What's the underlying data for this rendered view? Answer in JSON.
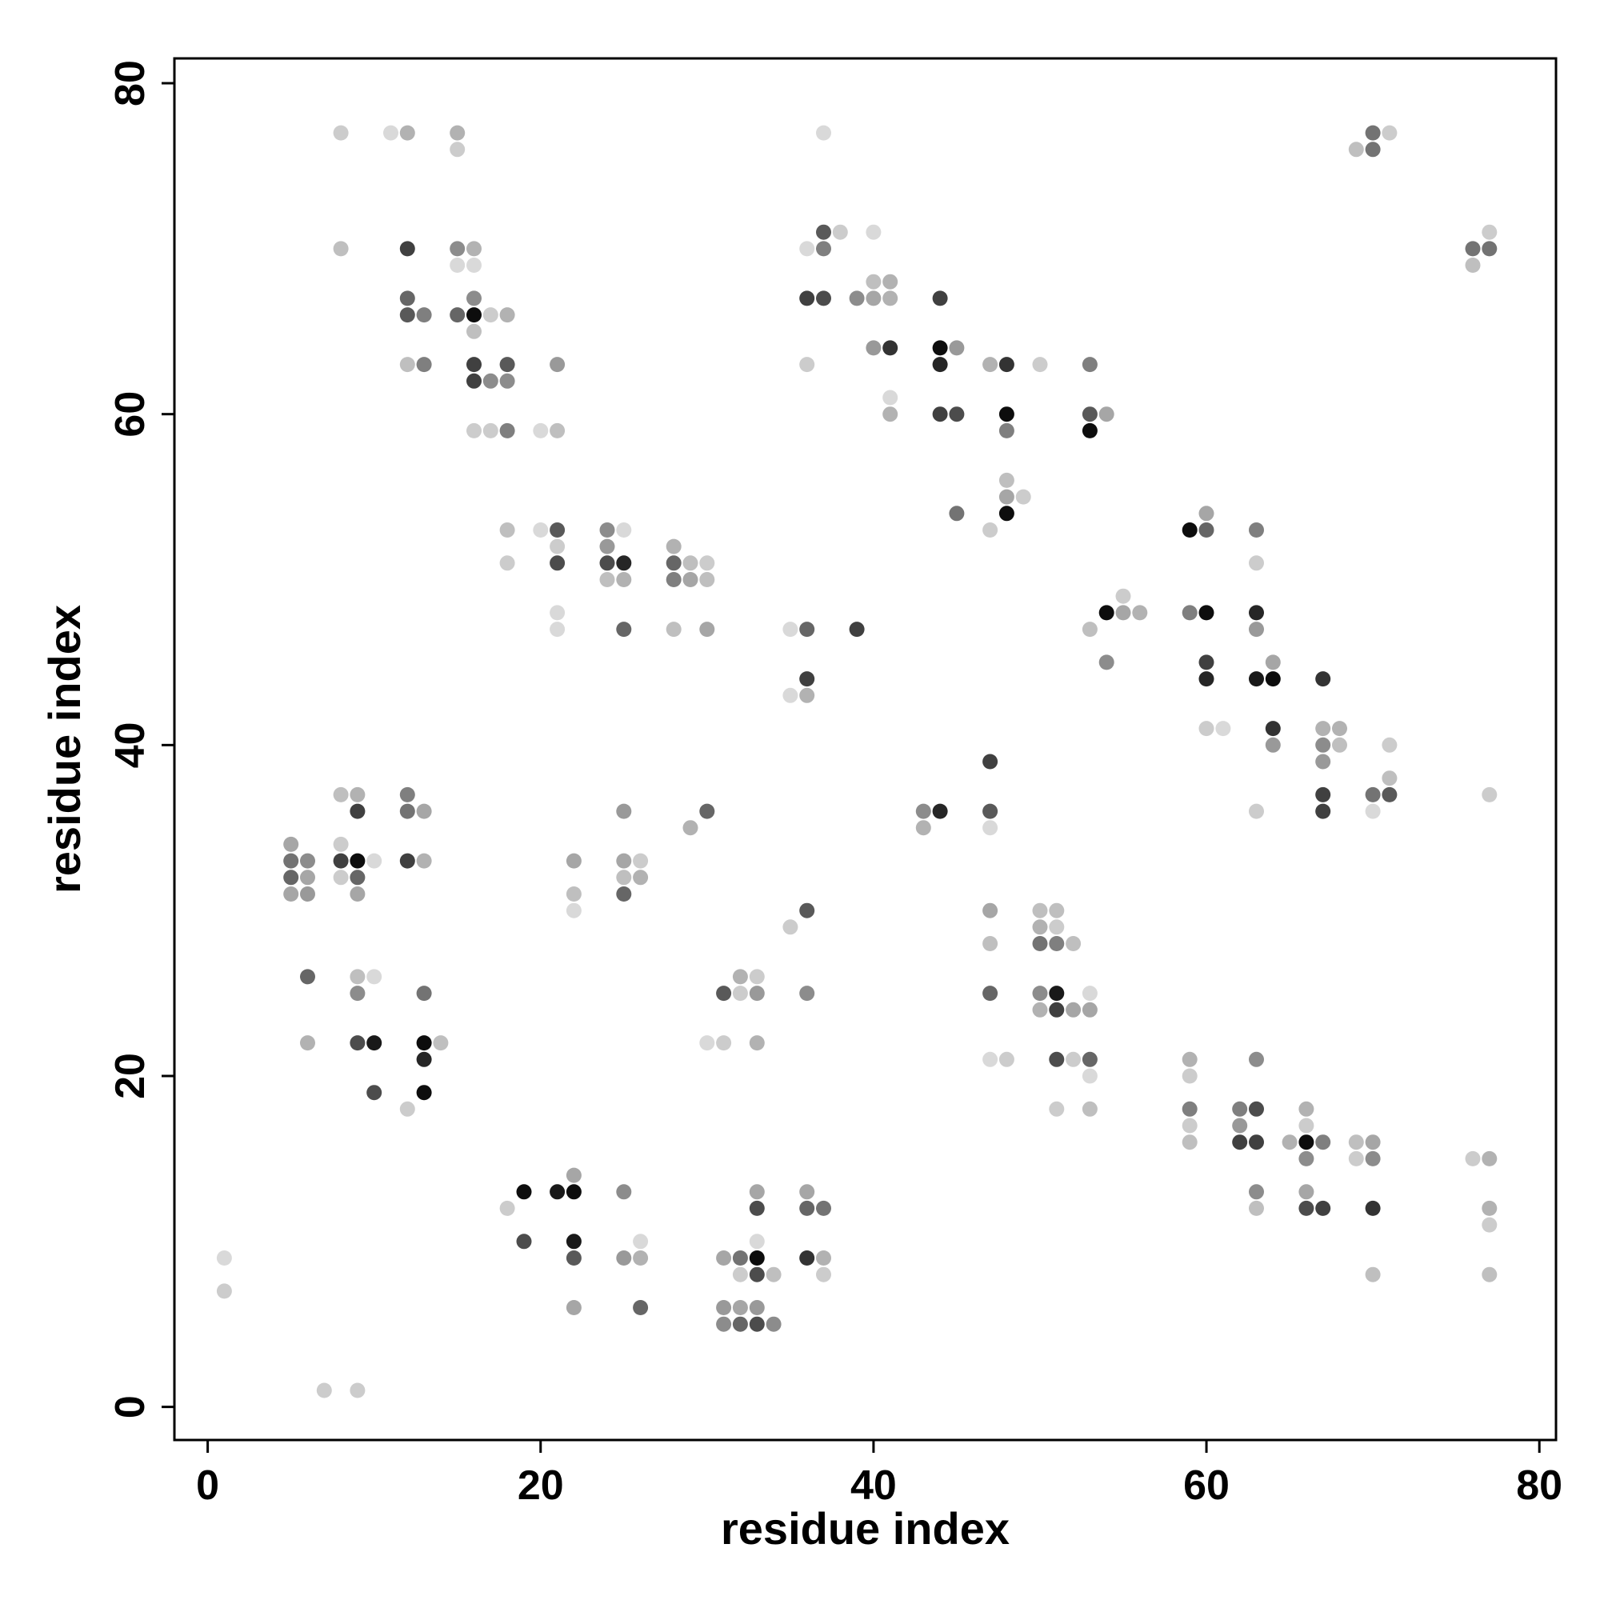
{
  "chart_data": {
    "type": "scatter",
    "title": "",
    "xlabel": "residue index",
    "ylabel": "residue index",
    "xlim": [
      -2,
      81
    ],
    "ylim": [
      -2,
      81.5
    ],
    "xticks": [
      0,
      20,
      40,
      60,
      80
    ],
    "yticks": [
      0,
      20,
      40,
      60,
      80
    ],
    "grid": false,
    "legend": "none",
    "marker_color": "#000000",
    "note_value": "grey level of each point: 0 = lightest, 1 = black",
    "points": [
      [
        1,
        9,
        0.15
      ],
      [
        1,
        7,
        0.2
      ],
      [
        7,
        1,
        0.2
      ],
      [
        9,
        1,
        0.2
      ],
      [
        8,
        77,
        0.2
      ],
      [
        11,
        77,
        0.15
      ],
      [
        12,
        77,
        0.3
      ],
      [
        15,
        77,
        0.3
      ],
      [
        15,
        76,
        0.2
      ],
      [
        8,
        70,
        0.25
      ],
      [
        12,
        70,
        0.75
      ],
      [
        15,
        70,
        0.45
      ],
      [
        16,
        70,
        0.3
      ],
      [
        15,
        69,
        0.15
      ],
      [
        16,
        69,
        0.15
      ],
      [
        12,
        67,
        0.6
      ],
      [
        16,
        67,
        0.45
      ],
      [
        12,
        66,
        0.65
      ],
      [
        13,
        66,
        0.5
      ],
      [
        15,
        66,
        0.6
      ],
      [
        16,
        66,
        0.95
      ],
      [
        17,
        66,
        0.2
      ],
      [
        18,
        66,
        0.3
      ],
      [
        16,
        65,
        0.25
      ],
      [
        12,
        63,
        0.25
      ],
      [
        13,
        63,
        0.5
      ],
      [
        16,
        63,
        0.75
      ],
      [
        18,
        63,
        0.65
      ],
      [
        16,
        62,
        0.75
      ],
      [
        17,
        62,
        0.45
      ],
      [
        18,
        62,
        0.45
      ],
      [
        16,
        59,
        0.2
      ],
      [
        17,
        59,
        0.2
      ],
      [
        18,
        59,
        0.5
      ],
      [
        20,
        59,
        0.15
      ],
      [
        21,
        59,
        0.25
      ],
      [
        21,
        63,
        0.4
      ],
      [
        18,
        53,
        0.25
      ],
      [
        20,
        53,
        0.15
      ],
      [
        21,
        53,
        0.65
      ],
      [
        21,
        52,
        0.2
      ],
      [
        18,
        51,
        0.2
      ],
      [
        21,
        51,
        0.7
      ],
      [
        21,
        48,
        0.15
      ],
      [
        21,
        47,
        0.15
      ],
      [
        24,
        53,
        0.45
      ],
      [
        25,
        53,
        0.15
      ],
      [
        24,
        52,
        0.4
      ],
      [
        24,
        51,
        0.7
      ],
      [
        25,
        51,
        0.85
      ],
      [
        24,
        50,
        0.25
      ],
      [
        25,
        50,
        0.3
      ],
      [
        25,
        47,
        0.6
      ],
      [
        28,
        52,
        0.3
      ],
      [
        28,
        51,
        0.6
      ],
      [
        29,
        51,
        0.25
      ],
      [
        30,
        51,
        0.2
      ],
      [
        28,
        50,
        0.5
      ],
      [
        29,
        50,
        0.35
      ],
      [
        30,
        50,
        0.25
      ],
      [
        28,
        47,
        0.25
      ],
      [
        30,
        47,
        0.35
      ],
      [
        5,
        34,
        0.35
      ],
      [
        5,
        33,
        0.55
      ],
      [
        6,
        33,
        0.45
      ],
      [
        5,
        32,
        0.6
      ],
      [
        6,
        32,
        0.35
      ],
      [
        5,
        31,
        0.35
      ],
      [
        6,
        31,
        0.4
      ],
      [
        8,
        37,
        0.25
      ],
      [
        9,
        37,
        0.3
      ],
      [
        9,
        36,
        0.75
      ],
      [
        8,
        34,
        0.2
      ],
      [
        8,
        33,
        0.75
      ],
      [
        9,
        33,
        0.95
      ],
      [
        10,
        33,
        0.15
      ],
      [
        8,
        32,
        0.2
      ],
      [
        9,
        32,
        0.6
      ],
      [
        9,
        31,
        0.35
      ],
      [
        12,
        37,
        0.5
      ],
      [
        12,
        36,
        0.55
      ],
      [
        13,
        36,
        0.35
      ],
      [
        12,
        33,
        0.75
      ],
      [
        13,
        33,
        0.3
      ],
      [
        6,
        26,
        0.6
      ],
      [
        6,
        22,
        0.3
      ],
      [
        9,
        26,
        0.25
      ],
      [
        10,
        26,
        0.15
      ],
      [
        9,
        25,
        0.45
      ],
      [
        9,
        22,
        0.7
      ],
      [
        10,
        22,
        0.9
      ],
      [
        10,
        19,
        0.7
      ],
      [
        13,
        25,
        0.55
      ],
      [
        13,
        22,
        0.95
      ],
      [
        14,
        22,
        0.25
      ],
      [
        13,
        21,
        0.85
      ],
      [
        13,
        19,
        0.95
      ],
      [
        12,
        18,
        0.2
      ],
      [
        22,
        33,
        0.35
      ],
      [
        22,
        31,
        0.25
      ],
      [
        22,
        30,
        0.15
      ],
      [
        25,
        36,
        0.4
      ],
      [
        25,
        33,
        0.35
      ],
      [
        26,
        33,
        0.2
      ],
      [
        25,
        32,
        0.25
      ],
      [
        26,
        32,
        0.3
      ],
      [
        25,
        31,
        0.6
      ],
      [
        29,
        35,
        0.3
      ],
      [
        30,
        36,
        0.6
      ],
      [
        18,
        12,
        0.2
      ],
      [
        19,
        13,
        0.95
      ],
      [
        21,
        13,
        0.9
      ],
      [
        22,
        13,
        0.95
      ],
      [
        22,
        14,
        0.35
      ],
      [
        19,
        10,
        0.7
      ],
      [
        22,
        10,
        0.9
      ],
      [
        22,
        9,
        0.65
      ],
      [
        22,
        6,
        0.35
      ],
      [
        25,
        13,
        0.45
      ],
      [
        25,
        9,
        0.4
      ],
      [
        26,
        9,
        0.3
      ],
      [
        26,
        10,
        0.15
      ],
      [
        26,
        6,
        0.6
      ],
      [
        31,
        9,
        0.35
      ],
      [
        32,
        9,
        0.55
      ],
      [
        33,
        9,
        0.95
      ],
      [
        32,
        8,
        0.2
      ],
      [
        33,
        8,
        0.7
      ],
      [
        34,
        8,
        0.25
      ],
      [
        33,
        10,
        0.15
      ],
      [
        33,
        13,
        0.35
      ],
      [
        33,
        12,
        0.7
      ],
      [
        31,
        6,
        0.4
      ],
      [
        32,
        6,
        0.35
      ],
      [
        33,
        6,
        0.4
      ],
      [
        31,
        5,
        0.45
      ],
      [
        32,
        5,
        0.6
      ],
      [
        33,
        5,
        0.7
      ],
      [
        34,
        5,
        0.45
      ],
      [
        36,
        13,
        0.35
      ],
      [
        36,
        12,
        0.6
      ],
      [
        37,
        12,
        0.55
      ],
      [
        36,
        9,
        0.8
      ],
      [
        37,
        9,
        0.3
      ],
      [
        37,
        8,
        0.2
      ],
      [
        31,
        25,
        0.65
      ],
      [
        32,
        26,
        0.3
      ],
      [
        33,
        26,
        0.2
      ],
      [
        32,
        25,
        0.2
      ],
      [
        33,
        25,
        0.4
      ],
      [
        33,
        22,
        0.3
      ],
      [
        30,
        22,
        0.15
      ],
      [
        31,
        22,
        0.2
      ],
      [
        35,
        29,
        0.2
      ],
      [
        36,
        30,
        0.65
      ],
      [
        36,
        25,
        0.45
      ],
      [
        37,
        77,
        0.15
      ],
      [
        37,
        71,
        0.65
      ],
      [
        38,
        71,
        0.2
      ],
      [
        40,
        71,
        0.15
      ],
      [
        36,
        70,
        0.15
      ],
      [
        37,
        70,
        0.5
      ],
      [
        36,
        67,
        0.75
      ],
      [
        37,
        67,
        0.7
      ],
      [
        39,
        67,
        0.45
      ],
      [
        40,
        67,
        0.35
      ],
      [
        41,
        67,
        0.3
      ],
      [
        40,
        68,
        0.25
      ],
      [
        41,
        68,
        0.3
      ],
      [
        36,
        63,
        0.2
      ],
      [
        40,
        64,
        0.4
      ],
      [
        41,
        64,
        0.8
      ],
      [
        41,
        61,
        0.15
      ],
      [
        41,
        60,
        0.3
      ],
      [
        44,
        67,
        0.75
      ],
      [
        44,
        64,
        0.95
      ],
      [
        45,
        64,
        0.4
      ],
      [
        44,
        63,
        0.85
      ],
      [
        44,
        60,
        0.75
      ],
      [
        45,
        60,
        0.7
      ],
      [
        47,
        63,
        0.3
      ],
      [
        48,
        63,
        0.8
      ],
      [
        48,
        60,
        0.95
      ],
      [
        48,
        59,
        0.5
      ],
      [
        50,
        63,
        0.2
      ],
      [
        53,
        63,
        0.5
      ],
      [
        53,
        60,
        0.65
      ],
      [
        54,
        60,
        0.35
      ],
      [
        53,
        59,
        0.95
      ],
      [
        45,
        54,
        0.55
      ],
      [
        47,
        53,
        0.2
      ],
      [
        48,
        56,
        0.25
      ],
      [
        48,
        55,
        0.35
      ],
      [
        49,
        55,
        0.2
      ],
      [
        48,
        54,
        0.95
      ],
      [
        35,
        47,
        0.15
      ],
      [
        36,
        47,
        0.6
      ],
      [
        39,
        47,
        0.75
      ],
      [
        36,
        44,
        0.75
      ],
      [
        35,
        43,
        0.15
      ],
      [
        36,
        43,
        0.3
      ],
      [
        53,
        47,
        0.25
      ],
      [
        54,
        48,
        0.95
      ],
      [
        55,
        48,
        0.35
      ],
      [
        56,
        48,
        0.3
      ],
      [
        55,
        49,
        0.2
      ],
      [
        54,
        45,
        0.45
      ],
      [
        59,
        53,
        0.95
      ],
      [
        60,
        53,
        0.6
      ],
      [
        60,
        54,
        0.35
      ],
      [
        59,
        48,
        0.5
      ],
      [
        60,
        48,
        0.95
      ],
      [
        60,
        45,
        0.75
      ],
      [
        60,
        44,
        0.85
      ],
      [
        60,
        41,
        0.2
      ],
      [
        61,
        41,
        0.15
      ],
      [
        63,
        53,
        0.5
      ],
      [
        63,
        51,
        0.2
      ],
      [
        63,
        48,
        0.85
      ],
      [
        63,
        47,
        0.4
      ],
      [
        63,
        44,
        0.9
      ],
      [
        64,
        44,
        0.95
      ],
      [
        64,
        45,
        0.35
      ],
      [
        64,
        41,
        0.8
      ],
      [
        64,
        40,
        0.4
      ],
      [
        63,
        36,
        0.2
      ],
      [
        67,
        44,
        0.8
      ],
      [
        67,
        41,
        0.3
      ],
      [
        68,
        41,
        0.3
      ],
      [
        67,
        40,
        0.45
      ],
      [
        68,
        40,
        0.25
      ],
      [
        67,
        39,
        0.4
      ],
      [
        67,
        37,
        0.75
      ],
      [
        67,
        36,
        0.75
      ],
      [
        70,
        37,
        0.55
      ],
      [
        71,
        37,
        0.65
      ],
      [
        70,
        36,
        0.15
      ],
      [
        71,
        38,
        0.25
      ],
      [
        71,
        40,
        0.2
      ],
      [
        77,
        37,
        0.2
      ],
      [
        43,
        36,
        0.45
      ],
      [
        44,
        36,
        0.85
      ],
      [
        43,
        35,
        0.3
      ],
      [
        47,
        39,
        0.75
      ],
      [
        47,
        36,
        0.65
      ],
      [
        47,
        35,
        0.15
      ],
      [
        47,
        30,
        0.35
      ],
      [
        47,
        28,
        0.25
      ],
      [
        47,
        25,
        0.6
      ],
      [
        47,
        21,
        0.15
      ],
      [
        48,
        21,
        0.2
      ],
      [
        50,
        30,
        0.25
      ],
      [
        51,
        30,
        0.25
      ],
      [
        50,
        29,
        0.3
      ],
      [
        51,
        29,
        0.2
      ],
      [
        50,
        28,
        0.55
      ],
      [
        51,
        28,
        0.5
      ],
      [
        52,
        28,
        0.25
      ],
      [
        50,
        25,
        0.45
      ],
      [
        51,
        25,
        0.9
      ],
      [
        53,
        25,
        0.15
      ],
      [
        50,
        24,
        0.3
      ],
      [
        51,
        24,
        0.75
      ],
      [
        52,
        24,
        0.35
      ],
      [
        53,
        24,
        0.35
      ],
      [
        51,
        21,
        0.7
      ],
      [
        52,
        21,
        0.2
      ],
      [
        53,
        21,
        0.6
      ],
      [
        53,
        20,
        0.15
      ],
      [
        51,
        18,
        0.2
      ],
      [
        53,
        18,
        0.25
      ],
      [
        59,
        21,
        0.3
      ],
      [
        59,
        20,
        0.2
      ],
      [
        59,
        18,
        0.5
      ],
      [
        59,
        17,
        0.2
      ],
      [
        59,
        16,
        0.25
      ],
      [
        62,
        18,
        0.5
      ],
      [
        63,
        18,
        0.7
      ],
      [
        63,
        21,
        0.45
      ],
      [
        62,
        17,
        0.4
      ],
      [
        62,
        16,
        0.75
      ],
      [
        63,
        16,
        0.75
      ],
      [
        63,
        13,
        0.45
      ],
      [
        63,
        12,
        0.25
      ],
      [
        65,
        16,
        0.3
      ],
      [
        66,
        16,
        0.95
      ],
      [
        67,
        16,
        0.5
      ],
      [
        66,
        18,
        0.3
      ],
      [
        66,
        17,
        0.2
      ],
      [
        66,
        15,
        0.45
      ],
      [
        66,
        13,
        0.35
      ],
      [
        66,
        12,
        0.7
      ],
      [
        67,
        12,
        0.75
      ],
      [
        69,
        16,
        0.25
      ],
      [
        70,
        16,
        0.35
      ],
      [
        69,
        15,
        0.2
      ],
      [
        70,
        15,
        0.45
      ],
      [
        70,
        12,
        0.8
      ],
      [
        70,
        8,
        0.25
      ],
      [
        76,
        15,
        0.2
      ],
      [
        77,
        15,
        0.3
      ],
      [
        77,
        12,
        0.3
      ],
      [
        77,
        11,
        0.2
      ],
      [
        77,
        8,
        0.25
      ],
      [
        69,
        76,
        0.25
      ],
      [
        70,
        76,
        0.55
      ],
      [
        70,
        77,
        0.55
      ],
      [
        71,
        77,
        0.2
      ],
      [
        76,
        70,
        0.55
      ],
      [
        77,
        70,
        0.55
      ],
      [
        76,
        69,
        0.25
      ],
      [
        77,
        71,
        0.2
      ]
    ]
  }
}
